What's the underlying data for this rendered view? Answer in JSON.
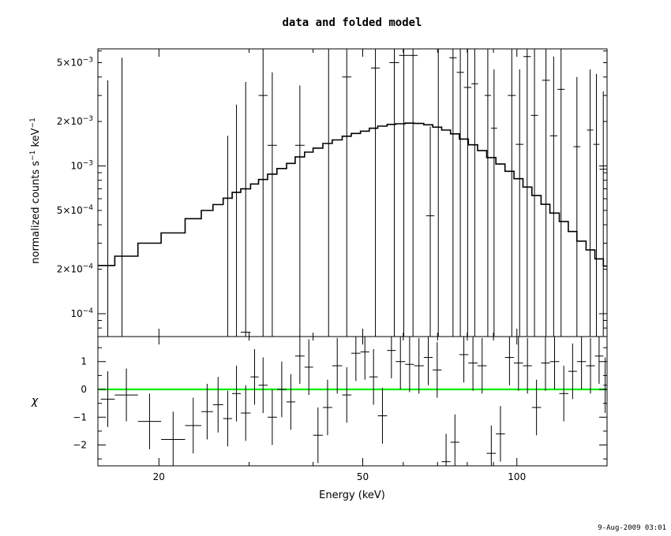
{
  "title": "data and folded model",
  "timestamp": "9-Aug-2009 03:01",
  "colors": {
    "axes": "#000000",
    "data": "#000000",
    "model": "#000000",
    "zero_line": "#00ee00"
  },
  "chart_data": [
    {
      "type": "scatter",
      "panel": "spectrum",
      "xlabel": "Energy (keV)",
      "ylabel_parts": [
        "normalized counts s",
        "−1",
        " keV",
        "−1"
      ],
      "xscale": "log",
      "yscale": "log",
      "xlim": [
        15.2,
        150
      ],
      "ylim": [
        7e-05,
        0.0062
      ],
      "yticks": [
        {
          "v": 0.0001,
          "m": "",
          "e": "−4",
          "base": "10"
        },
        {
          "v": 0.0002,
          "m": "2×",
          "e": "−4",
          "base": "10"
        },
        {
          "v": 0.0005,
          "m": "5×",
          "e": "−4",
          "base": "10"
        },
        {
          "v": 0.001,
          "m": "",
          "e": "−3",
          "base": "10"
        },
        {
          "v": 0.002,
          "m": "2×",
          "e": "−3",
          "base": "10"
        },
        {
          "v": 0.005,
          "m": "5×",
          "e": "−3",
          "base": "10"
        }
      ],
      "series": [
        {
          "role": "data",
          "points": [
            {
              "x0": 15.4,
              "x1": 16.4,
              "y": 6.2e-05,
              "ylo": 7e-05,
              "yhi": 0.0038
            },
            {
              "x0": 16.4,
              "x1": 17.5,
              "y": 6.2e-05,
              "ylo": 7e-05,
              "yhi": 0.0054
            },
            {
              "x0": 26.7,
              "x1": 27.8,
              "y": 6.2e-05,
              "ylo": 7e-05,
              "yhi": 0.0016
            },
            {
              "x0": 27.8,
              "x1": 28.9,
              "y": 6.2e-05,
              "ylo": 7e-05,
              "yhi": 0.0026
            },
            {
              "x0": 28.9,
              "x1": 30.2,
              "y": 7.5e-05,
              "ylo": 7e-05,
              "yhi": 0.0037
            },
            {
              "x0": 31.3,
              "x1": 32.6,
              "y": 0.003,
              "ylo": 7e-05,
              "yhi": 0.0062
            },
            {
              "x0": 32.6,
              "x1": 34.0,
              "y": 0.00138,
              "ylo": 7e-05,
              "yhi": 0.0043
            },
            {
              "x0": 36.9,
              "x1": 38.5,
              "y": 0.00138,
              "ylo": 7e-05,
              "yhi": 0.0035
            },
            {
              "x0": 42.0,
              "x1": 43.8,
              "y": 0.0062,
              "ylo": 7e-05,
              "yhi": 0.0062
            },
            {
              "x0": 45.6,
              "x1": 47.5,
              "y": 0.004,
              "ylo": 7e-05,
              "yhi": 0.0062
            },
            {
              "x0": 51.9,
              "x1": 54.0,
              "y": 0.0046,
              "ylo": 7e-05,
              "yhi": 0.0062
            },
            {
              "x0": 56.4,
              "x1": 58.9,
              "y": 0.005,
              "ylo": 7e-05,
              "yhi": 0.0062
            },
            {
              "x0": 58.9,
              "x1": 61.4,
              "y": 0.0056,
              "ylo": 7e-05,
              "yhi": 0.0062
            },
            {
              "x0": 61.4,
              "x1": 64.0,
              "y": 0.0056,
              "ylo": 7e-05,
              "yhi": 0.0062
            },
            {
              "x0": 66.5,
              "x1": 69.0,
              "y": 0.00046,
              "ylo": 7e-05,
              "yhi": 0.00185
            },
            {
              "x0": 69.0,
              "x1": 71.5,
              "y": 0.0062,
              "ylo": 7e-05,
              "yhi": 0.0062
            },
            {
              "x0": 73.8,
              "x1": 76.3,
              "y": 0.0054,
              "ylo": 7e-05,
              "yhi": 0.0062
            },
            {
              "x0": 76.3,
              "x1": 78.8,
              "y": 0.0043,
              "ylo": 7e-05,
              "yhi": 0.0062
            },
            {
              "x0": 78.8,
              "x1": 81.5,
              "y": 0.0034,
              "ylo": 7e-05,
              "yhi": 0.0062
            },
            {
              "x0": 81.5,
              "x1": 84.0,
              "y": 0.0036,
              "ylo": 7e-05,
              "yhi": 0.0062
            },
            {
              "x0": 86.5,
              "x1": 89.0,
              "y": 0.003,
              "ylo": 7e-05,
              "yhi": 0.0062
            },
            {
              "x0": 89.0,
              "x1": 91.5,
              "y": 0.0018,
              "ylo": 7e-05,
              "yhi": 0.0045
            },
            {
              "x0": 96.0,
              "x1": 99.5,
              "y": 0.003,
              "ylo": 7e-05,
              "yhi": 0.0062
            },
            {
              "x0": 99.5,
              "x1": 103.0,
              "y": 0.0014,
              "ylo": 7e-05,
              "yhi": 0.0045
            },
            {
              "x0": 103.0,
              "x1": 106.5,
              "y": 0.0055,
              "ylo": 7e-05,
              "yhi": 0.0062
            },
            {
              "x0": 106.5,
              "x1": 110.0,
              "y": 0.0022,
              "ylo": 7e-05,
              "yhi": 0.0062
            },
            {
              "x0": 112.0,
              "x1": 116.0,
              "y": 0.0038,
              "ylo": 7e-05,
              "yhi": 0.0062
            },
            {
              "x0": 116.0,
              "x1": 120.0,
              "y": 0.0016,
              "ylo": 7e-05,
              "yhi": 0.0055
            },
            {
              "x0": 120.0,
              "x1": 124.0,
              "y": 0.0033,
              "ylo": 7e-05,
              "yhi": 0.0062
            },
            {
              "x0": 129.0,
              "x1": 133.0,
              "y": 0.00135,
              "ylo": 7e-05,
              "yhi": 0.004
            },
            {
              "x0": 137.0,
              "x1": 141.0,
              "y": 0.00175,
              "ylo": 7e-05,
              "yhi": 0.0045
            },
            {
              "x0": 141.0,
              "x1": 145.0,
              "y": 0.0014,
              "ylo": 7e-05,
              "yhi": 0.0042
            },
            {
              "x0": 145.0,
              "x1": 150.0,
              "y": 0.00095,
              "ylo": 7e-05,
              "yhi": 0.0032
            }
          ]
        },
        {
          "role": "folded model",
          "steps": [
            [
              15.2,
              16.4,
              0.000212
            ],
            [
              16.4,
              18.2,
              0.000245
            ],
            [
              18.2,
              20.2,
              0.0003
            ],
            [
              20.2,
              22.5,
              0.000352
            ],
            [
              22.5,
              24.2,
              0.00044
            ],
            [
              24.2,
              25.5,
              0.0005
            ],
            [
              25.5,
              26.7,
              0.000548
            ],
            [
              26.7,
              27.8,
              0.000605
            ],
            [
              27.8,
              28.9,
              0.000662
            ],
            [
              28.9,
              30.2,
              0.0007
            ],
            [
              30.2,
              31.3,
              0.000755
            ],
            [
              31.3,
              32.6,
              0.00081
            ],
            [
              32.6,
              34.0,
              0.00088
            ],
            [
              34.0,
              35.5,
              0.00096
            ],
            [
              35.5,
              36.9,
              0.00104
            ],
            [
              36.9,
              38.5,
              0.00115
            ],
            [
              38.5,
              40.0,
              0.00124
            ],
            [
              40.0,
              41.8,
              0.00132
            ],
            [
              41.8,
              43.6,
              0.00142
            ],
            [
              43.6,
              45.6,
              0.0015
            ],
            [
              45.6,
              47.5,
              0.00159
            ],
            [
              47.5,
              49.5,
              0.00166
            ],
            [
              49.5,
              51.5,
              0.00172
            ],
            [
              51.5,
              53.5,
              0.0018
            ],
            [
              53.5,
              55.8,
              0.00186
            ],
            [
              55.8,
              58.0,
              0.00191
            ],
            [
              58.0,
              60.5,
              0.00193
            ],
            [
              60.5,
              63.0,
              0.00195
            ],
            [
              63.0,
              65.8,
              0.00194
            ],
            [
              65.8,
              68.5,
              0.0019
            ],
            [
              68.5,
              71.3,
              0.00183
            ],
            [
              71.3,
              74.2,
              0.00175
            ],
            [
              74.2,
              77.2,
              0.00165
            ],
            [
              77.2,
              80.4,
              0.00152
            ],
            [
              80.4,
              83.8,
              0.00139
            ],
            [
              83.8,
              87.3,
              0.00127
            ],
            [
              87.3,
              91.0,
              0.00114
            ],
            [
              91.0,
              94.8,
              0.00103
            ],
            [
              94.8,
              98.7,
              0.00092
            ],
            [
              98.7,
              102.8,
              0.00082
            ],
            [
              102.8,
              107.0,
              0.00072
            ],
            [
              107.0,
              111.5,
              0.00063
            ],
            [
              111.5,
              116.0,
              0.00055
            ],
            [
              116.0,
              121.0,
              0.00048
            ],
            [
              121.0,
              126.0,
              0.00042
            ],
            [
              126.0,
              131.0,
              0.00036
            ],
            [
              131.0,
              136.5,
              0.00031
            ],
            [
              136.5,
              142.0,
              0.00027
            ],
            [
              142.0,
              147.5,
              0.000235
            ],
            [
              147.5,
              150.0,
              0.00021
            ]
          ]
        }
      ]
    },
    {
      "type": "scatter",
      "panel": "residuals",
      "xlabel": "Energy (keV)",
      "ylabel": "χ",
      "xscale": "log",
      "xlim": [
        15.2,
        150
      ],
      "ylim": [
        -2.75,
        1.9
      ],
      "yticks": [
        -2,
        -1,
        0,
        1
      ],
      "xticks": [
        20,
        50,
        100
      ],
      "reference_line": 0,
      "series": [
        {
          "role": "residuals",
          "points": [
            {
              "x0": 15.4,
              "x1": 16.4,
              "y": -0.35,
              "e": 1.0
            },
            {
              "x0": 16.4,
              "x1": 18.2,
              "y": -0.2,
              "e": 0.95
            },
            {
              "x0": 18.2,
              "x1": 20.2,
              "y": -1.15,
              "e": 1.0
            },
            {
              "x0": 20.2,
              "x1": 22.5,
              "y": -1.8,
              "e": 1.0
            },
            {
              "x0": 22.5,
              "x1": 24.2,
              "y": -1.3,
              "e": 1.0
            },
            {
              "x0": 24.2,
              "x1": 25.5,
              "y": -0.8,
              "e": 1.0
            },
            {
              "x0": 25.5,
              "x1": 26.7,
              "y": -0.55,
              "e": 1.0
            },
            {
              "x0": 26.7,
              "x1": 27.8,
              "y": -1.05,
              "e": 1.0
            },
            {
              "x0": 27.8,
              "x1": 28.9,
              "y": -0.15,
              "e": 1.0
            },
            {
              "x0": 28.9,
              "x1": 30.2,
              "y": -0.85,
              "e": 1.0
            },
            {
              "x0": 30.2,
              "x1": 31.3,
              "y": 0.45,
              "e": 1.0
            },
            {
              "x0": 31.3,
              "x1": 32.6,
              "y": 0.15,
              "e": 1.0
            },
            {
              "x0": 32.6,
              "x1": 34.0,
              "y": -1.0,
              "e": 1.0
            },
            {
              "x0": 34.0,
              "x1": 35.5,
              "y": 0.0,
              "e": 1.0
            },
            {
              "x0": 35.5,
              "x1": 36.9,
              "y": -0.45,
              "e": 1.0
            },
            {
              "x0": 36.9,
              "x1": 38.5,
              "y": 1.2,
              "e": 1.0
            },
            {
              "x0": 38.5,
              "x1": 40.0,
              "y": 0.8,
              "e": 1.0
            },
            {
              "x0": 40.0,
              "x1": 41.8,
              "y": -1.65,
              "e": 1.0
            },
            {
              "x0": 41.8,
              "x1": 43.6,
              "y": -0.65,
              "e": 1.0
            },
            {
              "x0": 43.6,
              "x1": 45.6,
              "y": 0.85,
              "e": 1.0
            },
            {
              "x0": 45.6,
              "x1": 47.5,
              "y": -0.2,
              "e": 1.0
            },
            {
              "x0": 47.5,
              "x1": 49.5,
              "y": 1.3,
              "e": 1.0
            },
            {
              "x0": 49.5,
              "x1": 51.5,
              "y": 1.35,
              "e": 1.0
            },
            {
              "x0": 51.5,
              "x1": 53.5,
              "y": 0.45,
              "e": 1.0
            },
            {
              "x0": 53.5,
              "x1": 55.8,
              "y": -0.95,
              "e": 1.0
            },
            {
              "x0": 55.8,
              "x1": 58.0,
              "y": 1.4,
              "e": 1.0
            },
            {
              "x0": 58.0,
              "x1": 60.5,
              "y": 1.0,
              "e": 1.0
            },
            {
              "x0": 60.5,
              "x1": 63.0,
              "y": 0.9,
              "e": 1.0
            },
            {
              "x0": 63.0,
              "x1": 65.8,
              "y": 0.85,
              "e": 1.0
            },
            {
              "x0": 65.8,
              "x1": 68.5,
              "y": 1.15,
              "e": 1.0
            },
            {
              "x0": 68.5,
              "x1": 71.3,
              "y": 0.7,
              "e": 1.0
            },
            {
              "x0": 71.3,
              "x1": 74.2,
              "y": -2.6,
              "e": 1.0
            },
            {
              "x0": 74.2,
              "x1": 77.2,
              "y": -1.9,
              "e": 1.0
            },
            {
              "x0": 77.2,
              "x1": 80.4,
              "y": 1.25,
              "e": 1.0
            },
            {
              "x0": 80.4,
              "x1": 83.8,
              "y": 0.95,
              "e": 1.0
            },
            {
              "x0": 83.8,
              "x1": 87.3,
              "y": 0.85,
              "e": 1.0
            },
            {
              "x0": 87.3,
              "x1": 91.0,
              "y": -2.3,
              "e": 1.0
            },
            {
              "x0": 91.0,
              "x1": 94.8,
              "y": -1.6,
              "e": 1.0
            },
            {
              "x0": 94.8,
              "x1": 98.7,
              "y": 1.15,
              "e": 1.0
            },
            {
              "x0": 98.7,
              "x1": 102.8,
              "y": 0.95,
              "e": 1.0
            },
            {
              "x0": 102.8,
              "x1": 107.0,
              "y": 0.85,
              "e": 1.0
            },
            {
              "x0": 107.0,
              "x1": 111.5,
              "y": -0.65,
              "e": 1.0
            },
            {
              "x0": 111.5,
              "x1": 116.0,
              "y": 0.95,
              "e": 1.0
            },
            {
              "x0": 116.0,
              "x1": 121.0,
              "y": 1.0,
              "e": 1.0
            },
            {
              "x0": 121.0,
              "x1": 126.0,
              "y": -0.15,
              "e": 1.0
            },
            {
              "x0": 126.0,
              "x1": 131.0,
              "y": 0.65,
              "e": 1.0
            },
            {
              "x0": 131.0,
              "x1": 136.5,
              "y": 1.0,
              "e": 1.0
            },
            {
              "x0": 136.5,
              "x1": 142.0,
              "y": 0.85,
              "e": 1.0
            },
            {
              "x0": 142.0,
              "x1": 147.5,
              "y": 1.2,
              "e": 1.0
            },
            {
              "x0": 147.5,
              "x1": 150.0,
              "y": 0.15,
              "e": 1.0
            }
          ]
        }
      ]
    }
  ]
}
